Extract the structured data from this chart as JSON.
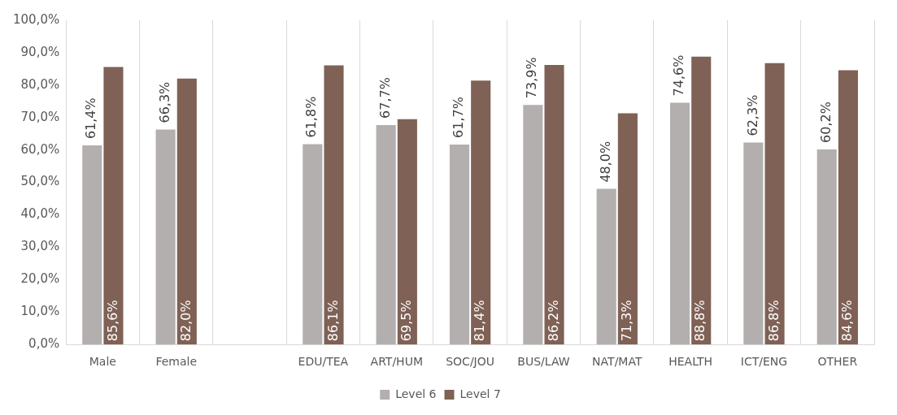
{
  "chart_data": {
    "type": "bar",
    "categories": [
      "Male",
      "Female",
      null,
      "EDU/TEA",
      "ART/HUM",
      "SOC/JOU",
      "BUS/LAW",
      "NAT/MAT",
      "HEALTH",
      "ICT/ENG",
      "OTHER"
    ],
    "series": [
      {
        "name": "Level 6",
        "color": "#b3afae",
        "values": [
          61.4,
          66.3,
          null,
          61.8,
          67.7,
          61.7,
          73.9,
          48.0,
          74.6,
          62.3,
          60.2
        ],
        "value_labels": [
          "61,4%",
          "66,3%",
          null,
          "61,8%",
          "67,7%",
          "61,7%",
          "73,9%",
          "48,0%",
          "74,6%",
          "62,3%",
          "60,2%"
        ]
      },
      {
        "name": "Level 7",
        "color": "#7f6155",
        "values": [
          85.6,
          82.0,
          null,
          86.1,
          69.5,
          81.4,
          86.2,
          71.3,
          88.8,
          86.8,
          84.6
        ],
        "value_labels": [
          "85,6%",
          "82,0%",
          null,
          "86,1%",
          "69,5%",
          "81,4%",
          "86,2%",
          "71,3%",
          "88,8%",
          "86,8%",
          "84,6%"
        ]
      }
    ],
    "ylim": [
      0,
      100
    ],
    "yticks": [
      {
        "value": 0,
        "label": "0,0%"
      },
      {
        "value": 10,
        "label": "10,0%"
      },
      {
        "value": 20,
        "label": "20,0%"
      },
      {
        "value": 30,
        "label": "30,0%"
      },
      {
        "value": 40,
        "label": "40,0%"
      },
      {
        "value": 50,
        "label": "50,0%"
      },
      {
        "value": 60,
        "label": "60,0%"
      },
      {
        "value": 70,
        "label": "70,0%"
      },
      {
        "value": 80,
        "label": "80,0%"
      },
      {
        "value": 90,
        "label": "90,0%"
      },
      {
        "value": 100,
        "label": "100,0%"
      }
    ],
    "grid": "x",
    "legend": "bottom"
  }
}
